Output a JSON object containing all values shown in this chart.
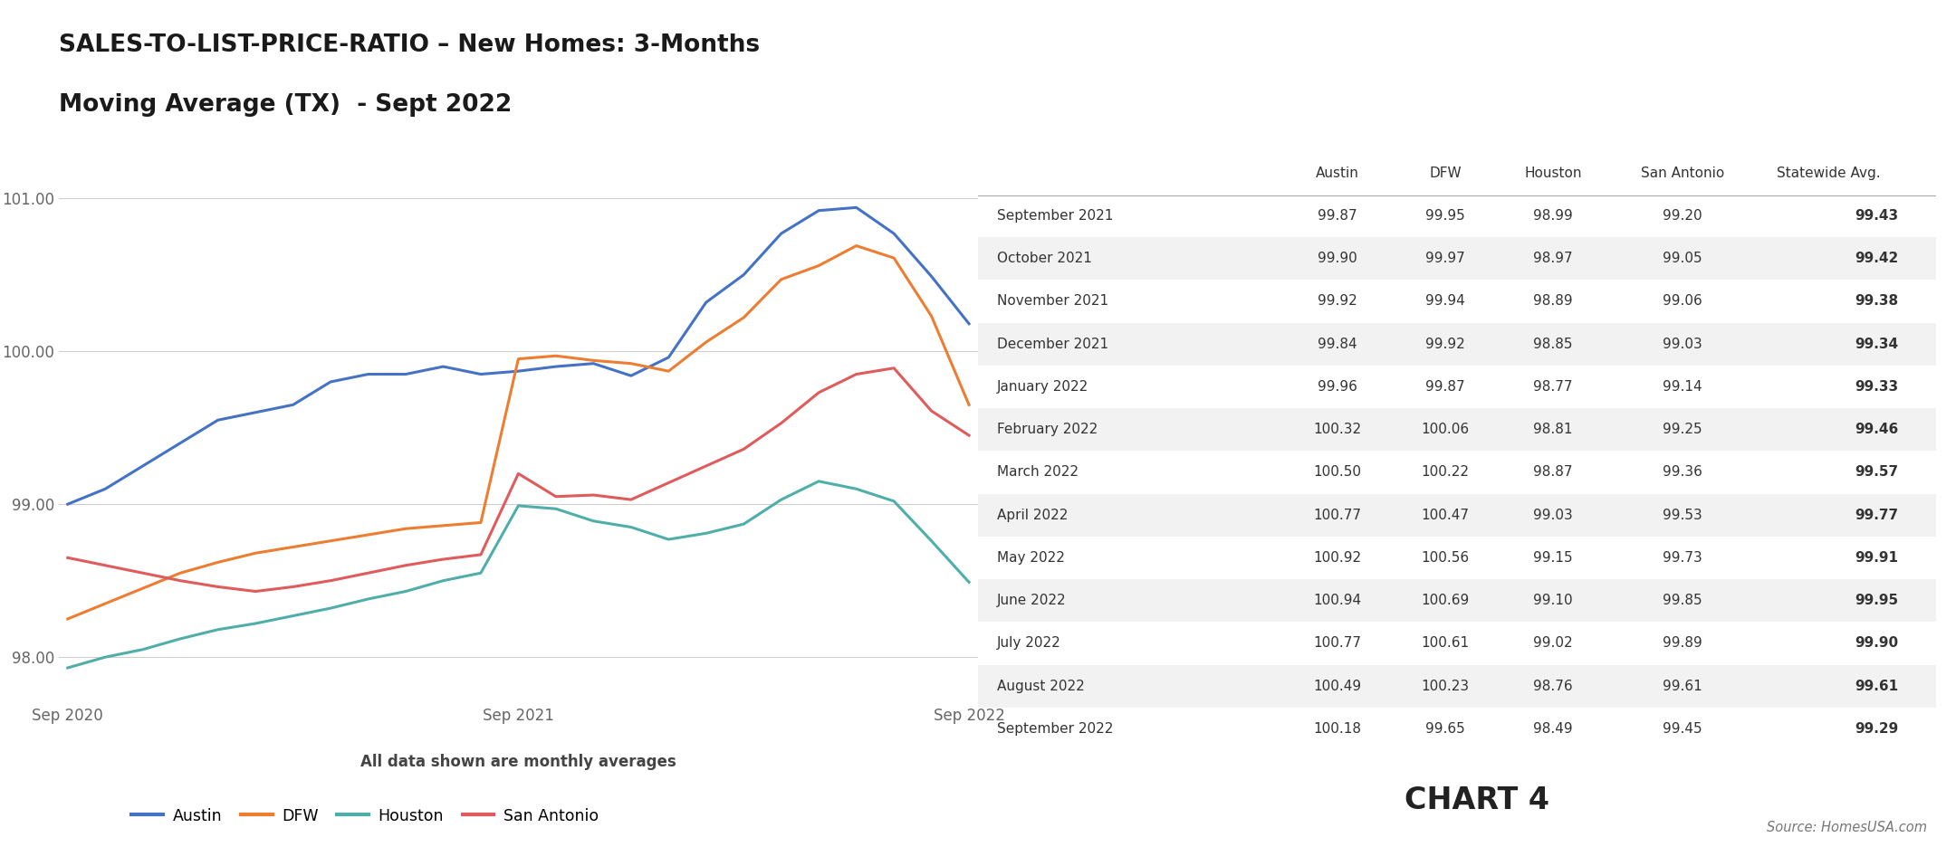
{
  "title_line1": "SALES-TO-LIST-PRICE-RATIO – New Homes: 3-Months",
  "title_line2": "Moving Average (TX)  - Sept 2022",
  "subtitle": "All data shown are monthly averages",
  "chart4_label": "CHART 4",
  "source": "Source: HomesUSA.com",
  "ylim": [
    97.7,
    101.3
  ],
  "yticks": [
    98.0,
    99.0,
    100.0,
    101.0
  ],
  "ytick_labels": [
    "98.00",
    "99.00",
    "100.00",
    "101.00"
  ],
  "xtick_labels": [
    "Sep 2020",
    "Sep 2021",
    "Sep 2022"
  ],
  "colors": {
    "Austin": "#4472C4",
    "DFW": "#ED7D31",
    "Houston": "#4FAEAA",
    "San Antonio": "#E05B5B"
  },
  "series": {
    "Austin": [
      99.0,
      99.1,
      99.25,
      99.4,
      99.55,
      99.6,
      99.65,
      99.8,
      99.85,
      99.85,
      99.9,
      99.85,
      99.87,
      99.9,
      99.92,
      99.84,
      99.96,
      100.32,
      100.5,
      100.77,
      100.92,
      100.94,
      100.77,
      100.49,
      100.18
    ],
    "DFW": [
      98.25,
      98.35,
      98.45,
      98.55,
      98.62,
      98.68,
      98.72,
      98.76,
      98.8,
      98.84,
      98.86,
      98.88,
      99.95,
      99.97,
      99.94,
      99.92,
      99.87,
      100.06,
      100.22,
      100.47,
      100.56,
      100.69,
      100.61,
      100.23,
      99.65
    ],
    "Houston": [
      97.93,
      98.0,
      98.05,
      98.12,
      98.18,
      98.22,
      98.27,
      98.32,
      98.38,
      98.43,
      98.5,
      98.55,
      98.99,
      98.97,
      98.89,
      98.85,
      98.77,
      98.81,
      98.87,
      99.03,
      99.15,
      99.1,
      99.02,
      98.76,
      98.49
    ],
    "San Antonio": [
      98.65,
      98.6,
      98.55,
      98.5,
      98.46,
      98.43,
      98.46,
      98.5,
      98.55,
      98.6,
      98.64,
      98.67,
      99.2,
      99.05,
      99.06,
      99.03,
      99.14,
      99.25,
      99.36,
      99.53,
      99.73,
      99.85,
      99.89,
      99.61,
      99.45
    ]
  },
  "table_rows": [
    {
      "month": "September 2021",
      "Austin": "99.87",
      "DFW": "99.95",
      "Houston": "98.99",
      "San Antonio": "99.20",
      "Statewide": "99.43"
    },
    {
      "month": "October 2021",
      "Austin": "99.90",
      "DFW": "99.97",
      "Houston": "98.97",
      "San Antonio": "99.05",
      "Statewide": "99.42"
    },
    {
      "month": "November 2021",
      "Austin": "99.92",
      "DFW": "99.94",
      "Houston": "98.89",
      "San Antonio": "99.06",
      "Statewide": "99.38"
    },
    {
      "month": "December 2021",
      "Austin": "99.84",
      "DFW": "99.92",
      "Houston": "98.85",
      "San Antonio": "99.03",
      "Statewide": "99.34"
    },
    {
      "month": "January 2022",
      "Austin": "99.96",
      "DFW": "99.87",
      "Houston": "98.77",
      "San Antonio": "99.14",
      "Statewide": "99.33"
    },
    {
      "month": "February 2022",
      "Austin": "100.32",
      "DFW": "100.06",
      "Houston": "98.81",
      "San Antonio": "99.25",
      "Statewide": "99.46"
    },
    {
      "month": "March 2022",
      "Austin": "100.50",
      "DFW": "100.22",
      "Houston": "98.87",
      "San Antonio": "99.36",
      "Statewide": "99.57"
    },
    {
      "month": "April 2022",
      "Austin": "100.77",
      "DFW": "100.47",
      "Houston": "99.03",
      "San Antonio": "99.53",
      "Statewide": "99.77"
    },
    {
      "month": "May 2022",
      "Austin": "100.92",
      "DFW": "100.56",
      "Houston": "99.15",
      "San Antonio": "99.73",
      "Statewide": "99.91"
    },
    {
      "month": "June 2022",
      "Austin": "100.94",
      "DFW": "100.69",
      "Houston": "99.10",
      "San Antonio": "99.85",
      "Statewide": "99.95"
    },
    {
      "month": "July 2022",
      "Austin": "100.77",
      "DFW": "100.61",
      "Houston": "99.02",
      "San Antonio": "99.89",
      "Statewide": "99.90"
    },
    {
      "month": "August 2022",
      "Austin": "100.49",
      "DFW": "100.23",
      "Houston": "98.76",
      "San Antonio": "99.61",
      "Statewide": "99.61"
    },
    {
      "month": "September 2022",
      "Austin": "100.18",
      "DFW": "99.65",
      "Houston": "98.49",
      "San Antonio": "99.45",
      "Statewide": "99.29"
    }
  ],
  "bg_color": "#FFFFFF",
  "grid_color": "#CCCCCC"
}
